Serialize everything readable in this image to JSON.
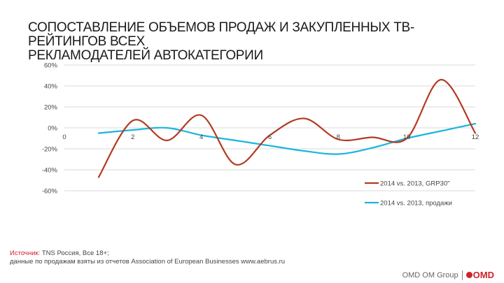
{
  "title_lines": [
    "СОПОСТАВЛЕНИЕ ОБЪЕМОВ ПРОДАЖ И ЗАКУПЛЕННЫХ ТВ-РЕЙТИНГОВ ВСЕХ",
    "РЕКЛАМОДАТЕЛЕЙ АВТОКАТЕГОРИИ"
  ],
  "chart_data": {
    "type": "line",
    "title": "СОПОСТАВЛЕНИЕ ОБЪЕМОВ ПРОДАЖ И ЗАКУПЛЕННЫХ ТВ-РЕЙТИНГОВ ВСЕХ РЕКЛАМОДАТЕЛЕЙ АВТОКАТЕГОРИИ",
    "xlim": [
      0,
      12
    ],
    "ylim": [
      -0.6,
      0.6
    ],
    "x_ticks": [
      "0",
      "2",
      "4",
      "6",
      "8",
      "10",
      "12"
    ],
    "y_ticks": [
      "60%",
      "40%",
      "20%",
      "0%",
      "-20%",
      "-40%",
      "-60%"
    ],
    "grid": true,
    "smooth": true,
    "legend_position": "right",
    "series": [
      {
        "name": "2014 vs. 2013, GRP30\"",
        "color": "#b33a22",
        "x": [
          1,
          2,
          3,
          4,
          5,
          6,
          7,
          8,
          9,
          10,
          11,
          12
        ],
        "y": [
          -0.47,
          0.07,
          -0.12,
          0.12,
          -0.35,
          -0.07,
          0.09,
          -0.11,
          -0.09,
          -0.1,
          0.46,
          -0.05
        ]
      },
      {
        "name": "2014 vs. 2013, продажи",
        "color": "#1ab6dc",
        "x": [
          1,
          2,
          3,
          4,
          5,
          6,
          7,
          8,
          9,
          10,
          11,
          12
        ],
        "y": [
          -0.05,
          -0.02,
          0.0,
          -0.07,
          -0.12,
          -0.17,
          -0.22,
          -0.25,
          -0.19,
          -0.1,
          -0.03,
          0.04
        ]
      }
    ]
  },
  "source": {
    "label": "Источник:",
    "text": " TNS Россия, Все 18+;",
    "line2": "данные по продажам взяты из отчетов Association of European Businesses www.aebrus.ru"
  },
  "footer": {
    "brand": "OMD OM Group",
    "logo": "OMD"
  }
}
